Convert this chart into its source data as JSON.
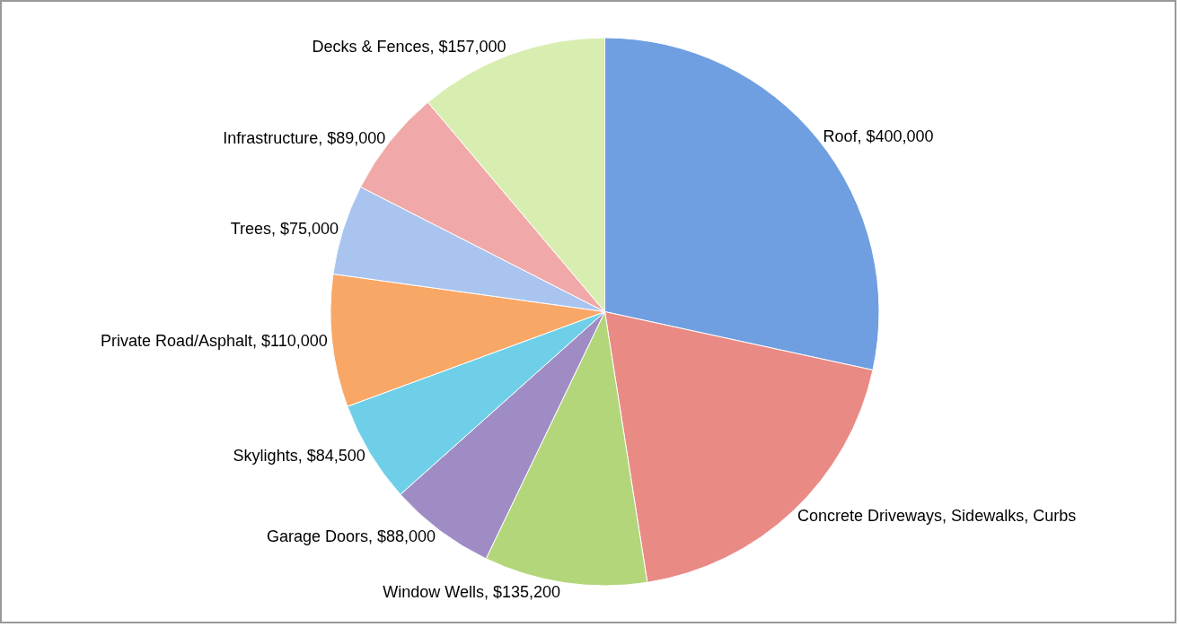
{
  "chart_data": {
    "type": "pie",
    "categories": [
      "Roof",
      "Concrete Driveways, Sidewalks, Curbs",
      "Window Wells",
      "Garage Doors",
      "Skylights",
      "Private Road/Asphalt",
      "Trees",
      "Infrastructure",
      "Decks & Fences"
    ],
    "values": [
      400000,
      269000,
      135200,
      88000,
      84500,
      110000,
      75000,
      89000,
      157000
    ],
    "value_labels": [
      "$400,000",
      null,
      "$135,200",
      "$88,000",
      "$84,500",
      "$110,000",
      "$75,000",
      "$89,000",
      "$157,000"
    ],
    "colors": [
      "#6f9fe0",
      "#e98a85",
      "#b3d67a",
      "#a08cc4",
      "#6fcfe8",
      "#f9a766",
      "#a9c4ef",
      "#f0a9a8",
      "#d8eeb0"
    ],
    "legend": false
  }
}
